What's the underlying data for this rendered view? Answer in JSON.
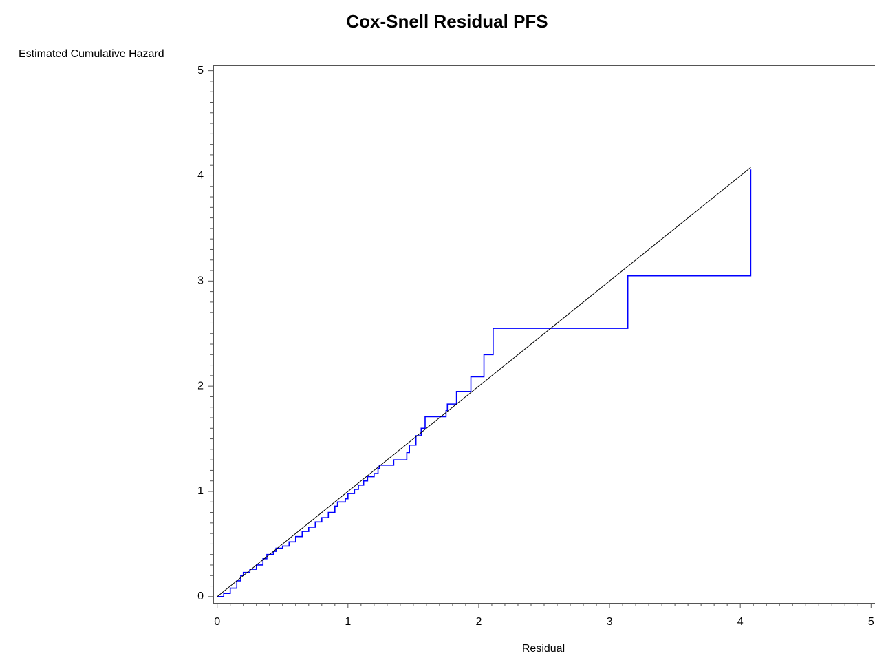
{
  "chart_data": {
    "type": "line",
    "title": "Cox-Snell Residual PFS",
    "x_label": "Residual",
    "y_label": "Estimated Cumulative Hazard",
    "xlim": [
      -0.03,
      5.03
    ],
    "ylim": [
      -0.06,
      5.05
    ],
    "xticks": [
      0,
      1,
      2,
      3,
      4,
      5
    ],
    "yticks": [
      0,
      1,
      2,
      3,
      4,
      5
    ],
    "series": [
      {
        "color": "#0000ff",
        "step": "post",
        "x": [
          0,
          0.05,
          0.1,
          0.15,
          0.18,
          0.2,
          0.25,
          0.3,
          0.35,
          0.38,
          0.43,
          0.45,
          0.5,
          0.55,
          0.6,
          0.65,
          0.7,
          0.75,
          0.8,
          0.85,
          0.9,
          0.92,
          0.98,
          1.0,
          1.05,
          1.08,
          1.12,
          1.15,
          1.2,
          1.23,
          1.24,
          1.35,
          1.45,
          1.47,
          1.52,
          1.56,
          1.59,
          1.75,
          1.76,
          1.83,
          1.94,
          2.04,
          2.11,
          3.14,
          4.08
        ],
        "values": [
          0,
          0.03,
          0.08,
          0.15,
          0.2,
          0.23,
          0.26,
          0.3,
          0.36,
          0.4,
          0.43,
          0.46,
          0.48,
          0.52,
          0.57,
          0.62,
          0.66,
          0.71,
          0.75,
          0.8,
          0.86,
          0.9,
          0.93,
          0.98,
          1.02,
          1.06,
          1.1,
          1.14,
          1.17,
          1.22,
          1.25,
          1.3,
          1.37,
          1.44,
          1.53,
          1.6,
          1.71,
          1.77,
          1.83,
          1.95,
          2.09,
          2.3,
          2.55,
          3.05,
          4.06
        ]
      },
      {
        "color": "#000000",
        "x": [
          0,
          4.08
        ],
        "values": [
          0,
          4.08
        ]
      }
    ]
  }
}
